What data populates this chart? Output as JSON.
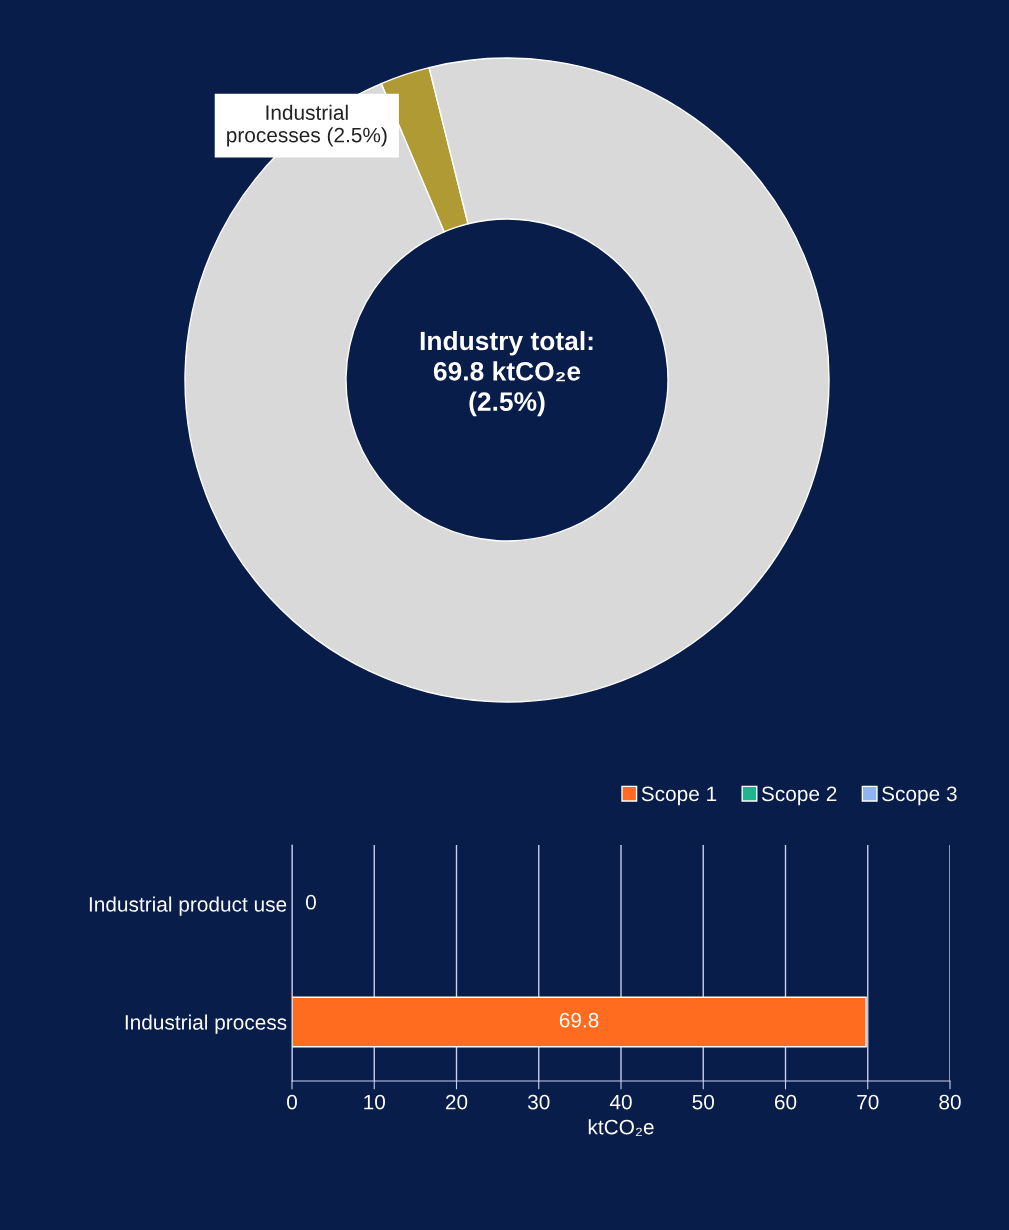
{
  "chart_data": [
    {
      "type": "donut",
      "categories": [
        "Industrial\nprocesses (2.5%)",
        null
      ],
      "values": [
        2.5,
        97.5
      ],
      "colors": [
        "#b09a33",
        "#d9d9d9"
      ],
      "annotations": [
        "Industry total:\n69.8 ktCO₂e\n(2.5%)"
      ]
    },
    {
      "type": "bar",
      "orientation": "horizontal",
      "categories": [
        "Industrial product use",
        "Industrial process"
      ],
      "series": [
        {
          "name": "Scope 1",
          "color": "#ff6b1f",
          "values": [
            0,
            69.8
          ],
          "value_labels": [
            "0",
            "69.8"
          ]
        },
        {
          "name": "Scope 2",
          "color": "#1fb58f",
          "values": [
            0,
            0
          ]
        },
        {
          "name": "Scope 3",
          "color": "#8fb4f0",
          "values": [
            0,
            0
          ]
        }
      ],
      "xlim": [
        0,
        80
      ],
      "xticks": [
        0,
        10,
        20,
        30,
        40,
        50,
        60,
        70,
        80
      ],
      "xlabel": "ktCO₂e",
      "grid": "x",
      "legend": "top right"
    }
  ]
}
